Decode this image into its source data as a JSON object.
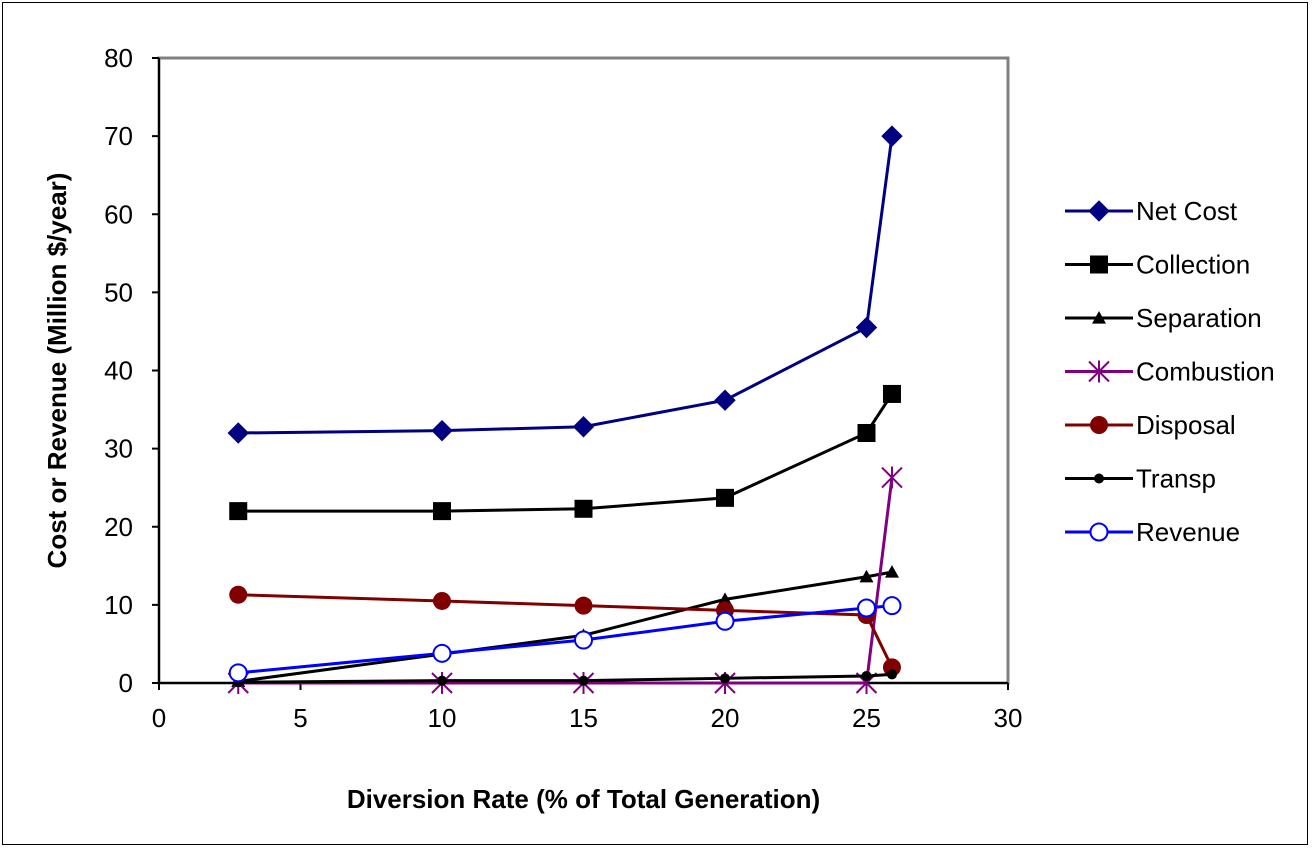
{
  "chart_data": {
    "type": "line",
    "xlabel": "Diversion Rate (% of Total Generation)",
    "ylabel": "Cost or Revenue (Million $/year)",
    "xlim": [
      0,
      30
    ],
    "ylim": [
      0,
      80
    ],
    "xticks": [
      0,
      5,
      10,
      15,
      20,
      25,
      30
    ],
    "yticks": [
      0,
      10,
      20,
      30,
      40,
      50,
      60,
      70,
      80
    ],
    "grid": false,
    "legend_position": "right",
    "x": [
      2.8,
      10,
      15,
      20,
      25,
      25.9
    ],
    "series": [
      {
        "name": "Net Cost",
        "color": "#000080",
        "marker": "diamond",
        "values": [
          32,
          32.3,
          32.8,
          36.2,
          45.5,
          70
        ]
      },
      {
        "name": "Collection",
        "color": "#000000",
        "marker": "square",
        "values": [
          22,
          22,
          22.3,
          23.7,
          32,
          37
        ]
      },
      {
        "name": "Separation",
        "color": "#000000",
        "marker": "triangle",
        "values": [
          0.2,
          3.7,
          6.1,
          10.7,
          13.6,
          14.2
        ]
      },
      {
        "name": "Combustion",
        "color": "#800080",
        "marker": "asterisk",
        "values": [
          0,
          0,
          0,
          0,
          0,
          26.3
        ]
      },
      {
        "name": "Disposal",
        "color": "#800000",
        "marker": "circle-filled",
        "values": [
          11.3,
          10.5,
          9.9,
          9.3,
          8.7,
          2
        ]
      },
      {
        "name": "Transp",
        "color": "#000000",
        "marker": "dot",
        "values": [
          0.1,
          0.3,
          0.3,
          0.6,
          0.9,
          1.1
        ]
      },
      {
        "name": "Revenue",
        "color": "#0000ff",
        "marker": "circle-open",
        "values": [
          1.3,
          3.8,
          5.5,
          7.9,
          9.6,
          9.9
        ]
      }
    ]
  }
}
